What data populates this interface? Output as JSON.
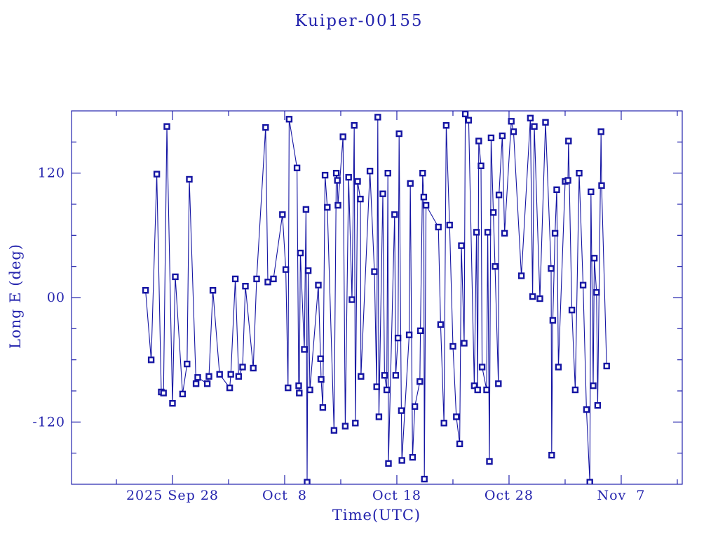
{
  "window": {
    "background_color": "#ffffff"
  },
  "colors": {
    "text": "#2323ad",
    "axis": "#2323ad",
    "series": "#1515a3",
    "marker_fill": "#ffffff"
  },
  "chart_data": {
    "type": "line",
    "title": "Kuiper-00155",
    "xlabel": "Time(UTC)",
    "ylabel": "Long E (deg)",
    "x_unit": "days since 2025 Sep 19 (UTC)",
    "xlim": [
      0,
      54.44
    ],
    "ylim": [
      -180,
      180
    ],
    "x_major_ticks": [
      9,
      19,
      29,
      39,
      49
    ],
    "x_tick_labels": [
      "2025 Sep 28",
      "Oct  8",
      "Oct 18",
      "Oct 28",
      "Nov  7"
    ],
    "x_minor_ticks": [
      4,
      14,
      24,
      34,
      44,
      54
    ],
    "y_major_ticks": [
      -120,
      0,
      120
    ],
    "y_tick_labels": [
      "-120",
      "00",
      "120"
    ],
    "y_minor_ticks": [
      -150,
      -90,
      -60,
      -30,
      30,
      60,
      90,
      150
    ],
    "grid": false,
    "legend": "none",
    "marker": "open-square",
    "series": [
      {
        "name": "Long E",
        "x": [
          6.6,
          7.1,
          7.6,
          8.0,
          8.2,
          8.5,
          9.0,
          9.25,
          9.9,
          10.3,
          10.5,
          11.1,
          11.25,
          12.1,
          12.25,
          12.6,
          13.2,
          14.1,
          14.2,
          14.6,
          14.9,
          15.25,
          15.5,
          16.2,
          16.5,
          17.3,
          17.5,
          18.0,
          18.8,
          19.1,
          19.3,
          19.4,
          20.1,
          20.25,
          20.3,
          20.4,
          20.75,
          20.9,
          21.0,
          21.1,
          21.25,
          22.0,
          22.2,
          22.25,
          22.4,
          22.6,
          22.8,
          23.4,
          23.6,
          23.7,
          23.75,
          24.2,
          24.4,
          24.7,
          25.0,
          25.2,
          25.3,
          25.5,
          25.75,
          25.8,
          26.6,
          27.0,
          27.2,
          27.3,
          27.4,
          27.75,
          27.9,
          28.1,
          28.2,
          28.25,
          28.8,
          28.9,
          29.1,
          29.2,
          29.4,
          29.45,
          30.1,
          30.2,
          30.4,
          30.6,
          31.05,
          31.1,
          31.3,
          31.4,
          31.45,
          31.6,
          32.7,
          32.9,
          33.2,
          33.4,
          33.7,
          34.0,
          34.3,
          34.6,
          34.75,
          35.0,
          35.1,
          35.4,
          35.9,
          36.1,
          36.2,
          36.3,
          36.5,
          36.6,
          37.0,
          37.1,
          37.25,
          37.4,
          37.6,
          37.75,
          38.05,
          38.1,
          38.4,
          38.6,
          39.2,
          39.4,
          40.1,
          40.9,
          41.1,
          41.25,
          41.75,
          42.25,
          42.75,
          42.8,
          42.9,
          43.1,
          43.25,
          43.4,
          44.0,
          44.25,
          44.3,
          44.6,
          44.9,
          45.25,
          45.6,
          45.9,
          46.2,
          46.3,
          46.5,
          46.6,
          46.8,
          46.9,
          47.2,
          47.25,
          47.7
        ],
        "y": [
          7,
          -60,
          119,
          -91,
          -92,
          165,
          -102,
          20,
          -93,
          -64,
          114,
          -83,
          -77,
          -83,
          -76,
          7,
          -74,
          -87,
          -74,
          18,
          -76,
          -67,
          11,
          -68,
          18,
          164,
          15,
          18,
          80,
          27,
          -87,
          172,
          125,
          -85,
          -92,
          43,
          -50,
          85,
          -178,
          26,
          -89,
          12,
          -59,
          -79,
          -106,
          118,
          87,
          -128,
          120,
          113,
          89,
          155,
          -124,
          116,
          -2,
          166,
          -121,
          112,
          95,
          -76,
          122,
          25,
          -86,
          174,
          -115,
          100,
          -75,
          -89,
          120,
          -160,
          80,
          -75,
          -39,
          158,
          -109,
          -157,
          -36,
          110,
          -154,
          -105,
          -81,
          -32,
          120,
          97,
          -175,
          89,
          68,
          -26,
          -121,
          166,
          70,
          -47,
          -115,
          -141,
          50,
          -44,
          177,
          171,
          -85,
          63,
          -89,
          151,
          127,
          -67,
          -89,
          63,
          -158,
          154,
          82,
          30,
          -83,
          99,
          156,
          62,
          170,
          160,
          21,
          173,
          1,
          165,
          -1,
          169,
          28,
          -152,
          -22,
          62,
          104,
          -67,
          112,
          113,
          151,
          -12,
          -89,
          120,
          12,
          -108,
          -178,
          102,
          -85,
          38,
          5,
          -104,
          160,
          108,
          -66
        ]
      }
    ]
  }
}
